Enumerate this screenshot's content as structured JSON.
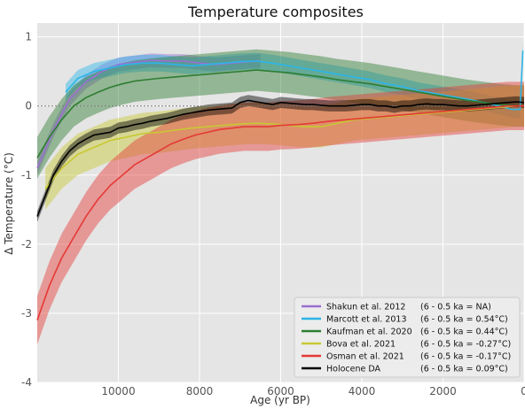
{
  "chart_data": {
    "type": "line",
    "title": "Temperature composites",
    "xlabel": "Age (yr BP)",
    "ylabel": "Δ Temperature (°C)",
    "xlim": [
      12000,
      0
    ],
    "ylim": [
      -4,
      1.2
    ],
    "x_ticks": [
      10000,
      8000,
      6000,
      4000,
      2000,
      0
    ],
    "y_ticks": [
      1,
      0,
      -1,
      -2,
      -3,
      -4
    ],
    "grid": true,
    "zero_line": true,
    "legend_position": "bottom-right",
    "series": [
      {
        "name": "Shakun et al. 2012",
        "anomaly": "(6 - 0.5 ka = NA)",
        "color": "#9b6fd1",
        "x": [
          12000,
          11600,
          11200,
          10800,
          10400,
          10000,
          9600,
          9200,
          8800,
          8400,
          8000,
          7600,
          7200,
          6800,
          6500
        ],
        "y": [
          -0.9,
          -0.35,
          0.1,
          0.35,
          0.5,
          0.6,
          0.63,
          0.66,
          0.65,
          0.65,
          0.62,
          0.6,
          0.62,
          0.64,
          0.65
        ],
        "band": 0.1
      },
      {
        "name": "Marcott et al. 2013",
        "anomaly": "(6 - 0.5 ka = 0.54°C)",
        "color": "#2cb5e8",
        "x": [
          11300,
          11000,
          10600,
          10200,
          9800,
          9400,
          9000,
          8600,
          8200,
          7800,
          7400,
          7000,
          6600,
          6200,
          5800,
          5400,
          5000,
          4600,
          4200,
          3800,
          3400,
          3000,
          2600,
          2200,
          1800,
          1400,
          1000,
          600,
          300,
          100,
          30
        ],
        "y": [
          0.2,
          0.4,
          0.5,
          0.55,
          0.6,
          0.62,
          0.62,
          0.6,
          0.58,
          0.6,
          0.62,
          0.64,
          0.65,
          0.62,
          0.58,
          0.54,
          0.5,
          0.46,
          0.42,
          0.38,
          0.32,
          0.28,
          0.22,
          0.18,
          0.14,
          0.1,
          0.05,
          0.0,
          -0.05,
          -0.05,
          0.8
        ],
        "band": 0.12
      },
      {
        "name": "Kaufman et al. 2020",
        "anomaly": "(6 - 0.5 ka = 0.44°C)",
        "color": "#2e7d32",
        "x": [
          12000,
          11700,
          11400,
          11100,
          10800,
          10500,
          10200,
          9900,
          9600,
          9300,
          9000,
          8600,
          8200,
          7800,
          7400,
          7000,
          6600,
          6200,
          5800,
          5400,
          5000,
          4600,
          4200,
          3800,
          3400,
          3000,
          2600,
          2200,
          1800,
          1400,
          1000,
          600,
          200,
          0
        ],
        "y": [
          -0.75,
          -0.45,
          -0.2,
          0.0,
          0.12,
          0.2,
          0.27,
          0.32,
          0.36,
          0.38,
          0.4,
          0.42,
          0.44,
          0.46,
          0.48,
          0.5,
          0.52,
          0.5,
          0.48,
          0.45,
          0.42,
          0.38,
          0.35,
          0.32,
          0.28,
          0.24,
          0.2,
          0.16,
          0.12,
          0.08,
          0.05,
          0.02,
          0.0,
          0.0
        ],
        "band": 0.3
      },
      {
        "name": "Bova et al. 2021",
        "anomaly": "(6 - 0.5 ka = -0.27°C)",
        "color": "#c8c832",
        "x": [
          11800,
          11400,
          11000,
          10600,
          10200,
          9800,
          9400,
          9000,
          8600,
          8200,
          7800,
          7400,
          7000,
          6600,
          6200,
          5800,
          5400,
          5000,
          4600,
          4200,
          3800,
          3400,
          3000,
          2600,
          2200,
          1800,
          1400,
          1000,
          600,
          200,
          0
        ],
        "y": [
          -1.2,
          -0.9,
          -0.7,
          -0.6,
          -0.5,
          -0.45,
          -0.4,
          -0.38,
          -0.35,
          -0.32,
          -0.3,
          -0.28,
          -0.26,
          -0.25,
          -0.26,
          -0.28,
          -0.3,
          -0.3,
          -0.25,
          -0.2,
          -0.18,
          -0.16,
          -0.14,
          -0.12,
          -0.1,
          -0.08,
          -0.06,
          -0.04,
          -0.02,
          0.0,
          0.0
        ],
        "band": 0.3
      },
      {
        "name": "Osman et al. 2021",
        "anomaly": "(6 - 0.5 ka = -0.17°C)",
        "color": "#e53935",
        "x": [
          12000,
          11700,
          11400,
          11100,
          10800,
          10500,
          10200,
          9900,
          9600,
          9300,
          9000,
          8700,
          8400,
          8100,
          7800,
          7500,
          7200,
          6900,
          6600,
          6300,
          6000,
          5600,
          5200,
          4800,
          4400,
          4000,
          3600,
          3200,
          2800,
          2400,
          2000,
          1600,
          1200,
          800,
          400,
          0
        ],
        "y": [
          -3.1,
          -2.6,
          -2.2,
          -1.9,
          -1.6,
          -1.35,
          -1.15,
          -1.0,
          -0.85,
          -0.75,
          -0.65,
          -0.55,
          -0.48,
          -0.42,
          -0.38,
          -0.34,
          -0.32,
          -0.3,
          -0.3,
          -0.3,
          -0.28,
          -0.27,
          -0.25,
          -0.22,
          -0.2,
          -0.18,
          -0.16,
          -0.14,
          -0.12,
          -0.1,
          -0.08,
          -0.06,
          -0.04,
          -0.02,
          0.0,
          0.0
        ],
        "band": 0.35
      },
      {
        "name": "Holocene DA",
        "anomaly": "(6 - 0.5 ka = 0.09°C)",
        "color": "#000000",
        "x": [
          12000,
          11800,
          11600,
          11400,
          11200,
          11000,
          10800,
          10600,
          10400,
          10200,
          10000,
          9800,
          9600,
          9400,
          9200,
          9000,
          8800,
          8600,
          8400,
          8200,
          8000,
          7800,
          7600,
          7400,
          7200,
          7000,
          6800,
          6600,
          6400,
          6200,
          6000,
          5800,
          5600,
          5400,
          5200,
          5000,
          4800,
          4600,
          4400,
          4200,
          4000,
          3800,
          3600,
          3400,
          3200,
          3000,
          2800,
          2600,
          2400,
          2200,
          2000,
          1800,
          1600,
          1400,
          1200,
          1000,
          800,
          600,
          400,
          200,
          0
        ],
        "y": [
          -1.6,
          -1.3,
          -1.0,
          -0.8,
          -0.65,
          -0.55,
          -0.48,
          -0.42,
          -0.4,
          -0.38,
          -0.32,
          -0.3,
          -0.27,
          -0.25,
          -0.22,
          -0.2,
          -0.18,
          -0.15,
          -0.12,
          -0.1,
          -0.08,
          -0.06,
          -0.05,
          -0.04,
          -0.03,
          0.05,
          0.08,
          0.06,
          0.04,
          0.02,
          0.05,
          0.04,
          0.03,
          0.02,
          0.02,
          0.01,
          0.0,
          0.0,
          0.0,
          0.01,
          0.02,
          0.02,
          0.0,
          0.0,
          -0.02,
          0.0,
          0.0,
          0.02,
          0.03,
          0.02,
          0.02,
          0.01,
          0.0,
          0.0,
          0.01,
          0.02,
          0.03,
          0.04,
          0.05,
          0.06,
          0.05
        ],
        "band": 0.08
      }
    ]
  }
}
